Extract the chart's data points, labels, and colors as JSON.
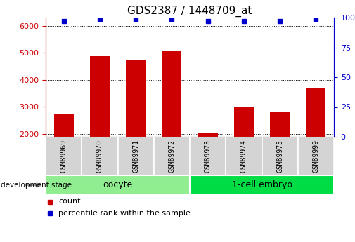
{
  "title": "GDS2387 / 1448709_at",
  "samples": [
    "GSM89969",
    "GSM89970",
    "GSM89971",
    "GSM89972",
    "GSM89973",
    "GSM89974",
    "GSM89975",
    "GSM89999"
  ],
  "counts": [
    2720,
    4870,
    4750,
    5060,
    2020,
    3010,
    2840,
    3720
  ],
  "percentile_ranks": [
    97,
    99,
    99,
    99,
    97,
    97,
    97,
    99
  ],
  "groups": [
    {
      "label": "oocyte",
      "indices": [
        0,
        1,
        2,
        3
      ],
      "color": "#90ee90"
    },
    {
      "label": "1-cell embryo",
      "indices": [
        4,
        5,
        6,
        7
      ],
      "color": "#00dd44"
    }
  ],
  "bar_color": "#cc0000",
  "dot_color": "#0000cc",
  "ylim_left": [
    1900,
    6300
  ],
  "ylim_right": [
    0,
    100
  ],
  "yticks_left": [
    2000,
    3000,
    4000,
    5000,
    6000
  ],
  "yticks_right": [
    0,
    25,
    50,
    75,
    100
  ],
  "left_tick_color": "#cc0000",
  "right_tick_color": "#0000cc",
  "title_fontsize": 11,
  "tick_fontsize": 8,
  "sample_fontsize": 7,
  "group_label_fontsize": 9,
  "legend_fontsize": 8
}
